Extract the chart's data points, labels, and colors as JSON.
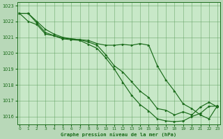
{
  "title": "Graphe pression niveau de la mer (hPa)",
  "background_color": "#b8d8b8",
  "plot_bg_color": "#c8e8c8",
  "grid_color": "#5a9a5a",
  "line_color": "#1a6b1a",
  "marker_color": "#1a6b1a",
  "hours": [
    0,
    1,
    2,
    3,
    4,
    5,
    6,
    7,
    8,
    9,
    10,
    11,
    12,
    13,
    14,
    15,
    16,
    17,
    18,
    19,
    20,
    21,
    22,
    23
  ],
  "series1": [
    1022.5,
    1022.5,
    1021.9,
    1021.3,
    1021.1,
    1020.95,
    1020.9,
    1020.85,
    1020.7,
    1020.5,
    1019.9,
    1019.2,
    1018.8,
    1018.2,
    1017.6,
    1017.2,
    1016.5,
    1016.4,
    1016.1,
    1016.3,
    1016.1,
    1016.6,
    1016.9,
    1016.6
  ],
  "series2": [
    1022.5,
    1022.5,
    1022.0,
    1021.5,
    1021.2,
    1021.0,
    1020.9,
    1020.85,
    1020.8,
    1020.6,
    1020.5,
    1020.5,
    1020.55,
    1020.5,
    1020.6,
    1020.5,
    1019.2,
    1018.3,
    1017.6,
    1016.8,
    1016.5,
    1016.1,
    1015.85,
    1016.7
  ],
  "series3": [
    1022.5,
    1022.0,
    1021.8,
    1021.2,
    1021.1,
    1020.9,
    1020.85,
    1020.8,
    1020.55,
    1020.3,
    1019.7,
    1019.0,
    1018.15,
    1017.35,
    1016.75,
    1016.35,
    1015.85,
    1015.72,
    1015.68,
    1015.72,
    1016.0,
    1016.2,
    1016.65,
    1016.65
  ],
  "ylim": [
    1015.5,
    1023.2
  ],
  "yticks": [
    1016,
    1017,
    1018,
    1019,
    1020,
    1021,
    1022,
    1023
  ],
  "xlim": [
    -0.3,
    23.3
  ],
  "xticks": [
    0,
    1,
    2,
    3,
    4,
    5,
    6,
    7,
    8,
    9,
    10,
    11,
    12,
    13,
    14,
    15,
    16,
    17,
    18,
    19,
    20,
    21,
    22,
    23
  ]
}
